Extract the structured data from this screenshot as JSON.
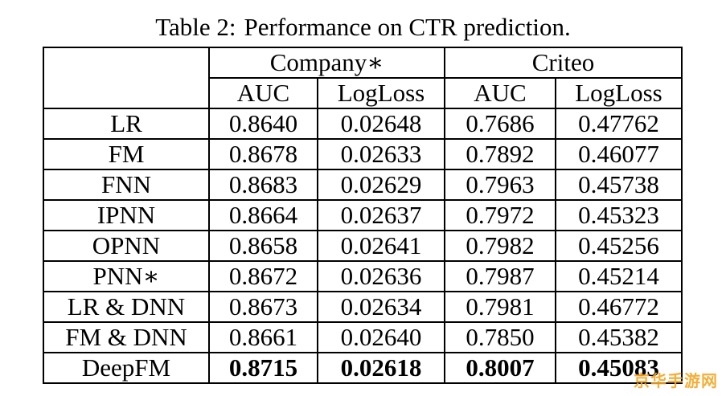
{
  "caption": {
    "label": "Table 2:",
    "text": "Performance on CTR prediction."
  },
  "header": {
    "group1": "Company∗",
    "group2": "Criteo",
    "sub": [
      "AUC",
      "LogLoss",
      "AUC",
      "LogLoss"
    ]
  },
  "rows": [
    {
      "model": "LR",
      "values": [
        "0.8640",
        "0.02648",
        "0.7686",
        "0.47762"
      ],
      "bold": false
    },
    {
      "model": "FM",
      "values": [
        "0.8678",
        "0.02633",
        "0.7892",
        "0.46077"
      ],
      "bold": false
    },
    {
      "model": "FNN",
      "values": [
        "0.8683",
        "0.02629",
        "0.7963",
        "0.45738"
      ],
      "bold": false
    },
    {
      "model": "IPNN",
      "values": [
        "0.8664",
        "0.02637",
        "0.7972",
        "0.45323"
      ],
      "bold": false
    },
    {
      "model": "OPNN",
      "values": [
        "0.8658",
        "0.02641",
        "0.7982",
        "0.45256"
      ],
      "bold": false
    },
    {
      "model": "PNN∗",
      "values": [
        "0.8672",
        "0.02636",
        "0.7987",
        "0.45214"
      ],
      "bold": false
    },
    {
      "model": "LR & DNN",
      "values": [
        "0.8673",
        "0.02634",
        "0.7981",
        "0.46772"
      ],
      "bold": false
    },
    {
      "model": "FM & DNN",
      "values": [
        "0.8661",
        "0.02640",
        "0.7850",
        "0.45382"
      ],
      "bold": false
    },
    {
      "model": "DeepFM",
      "values": [
        "0.8715",
        "0.02618",
        "0.8007",
        "0.45083"
      ],
      "bold": true
    }
  ],
  "watermark": "京华手游网"
}
